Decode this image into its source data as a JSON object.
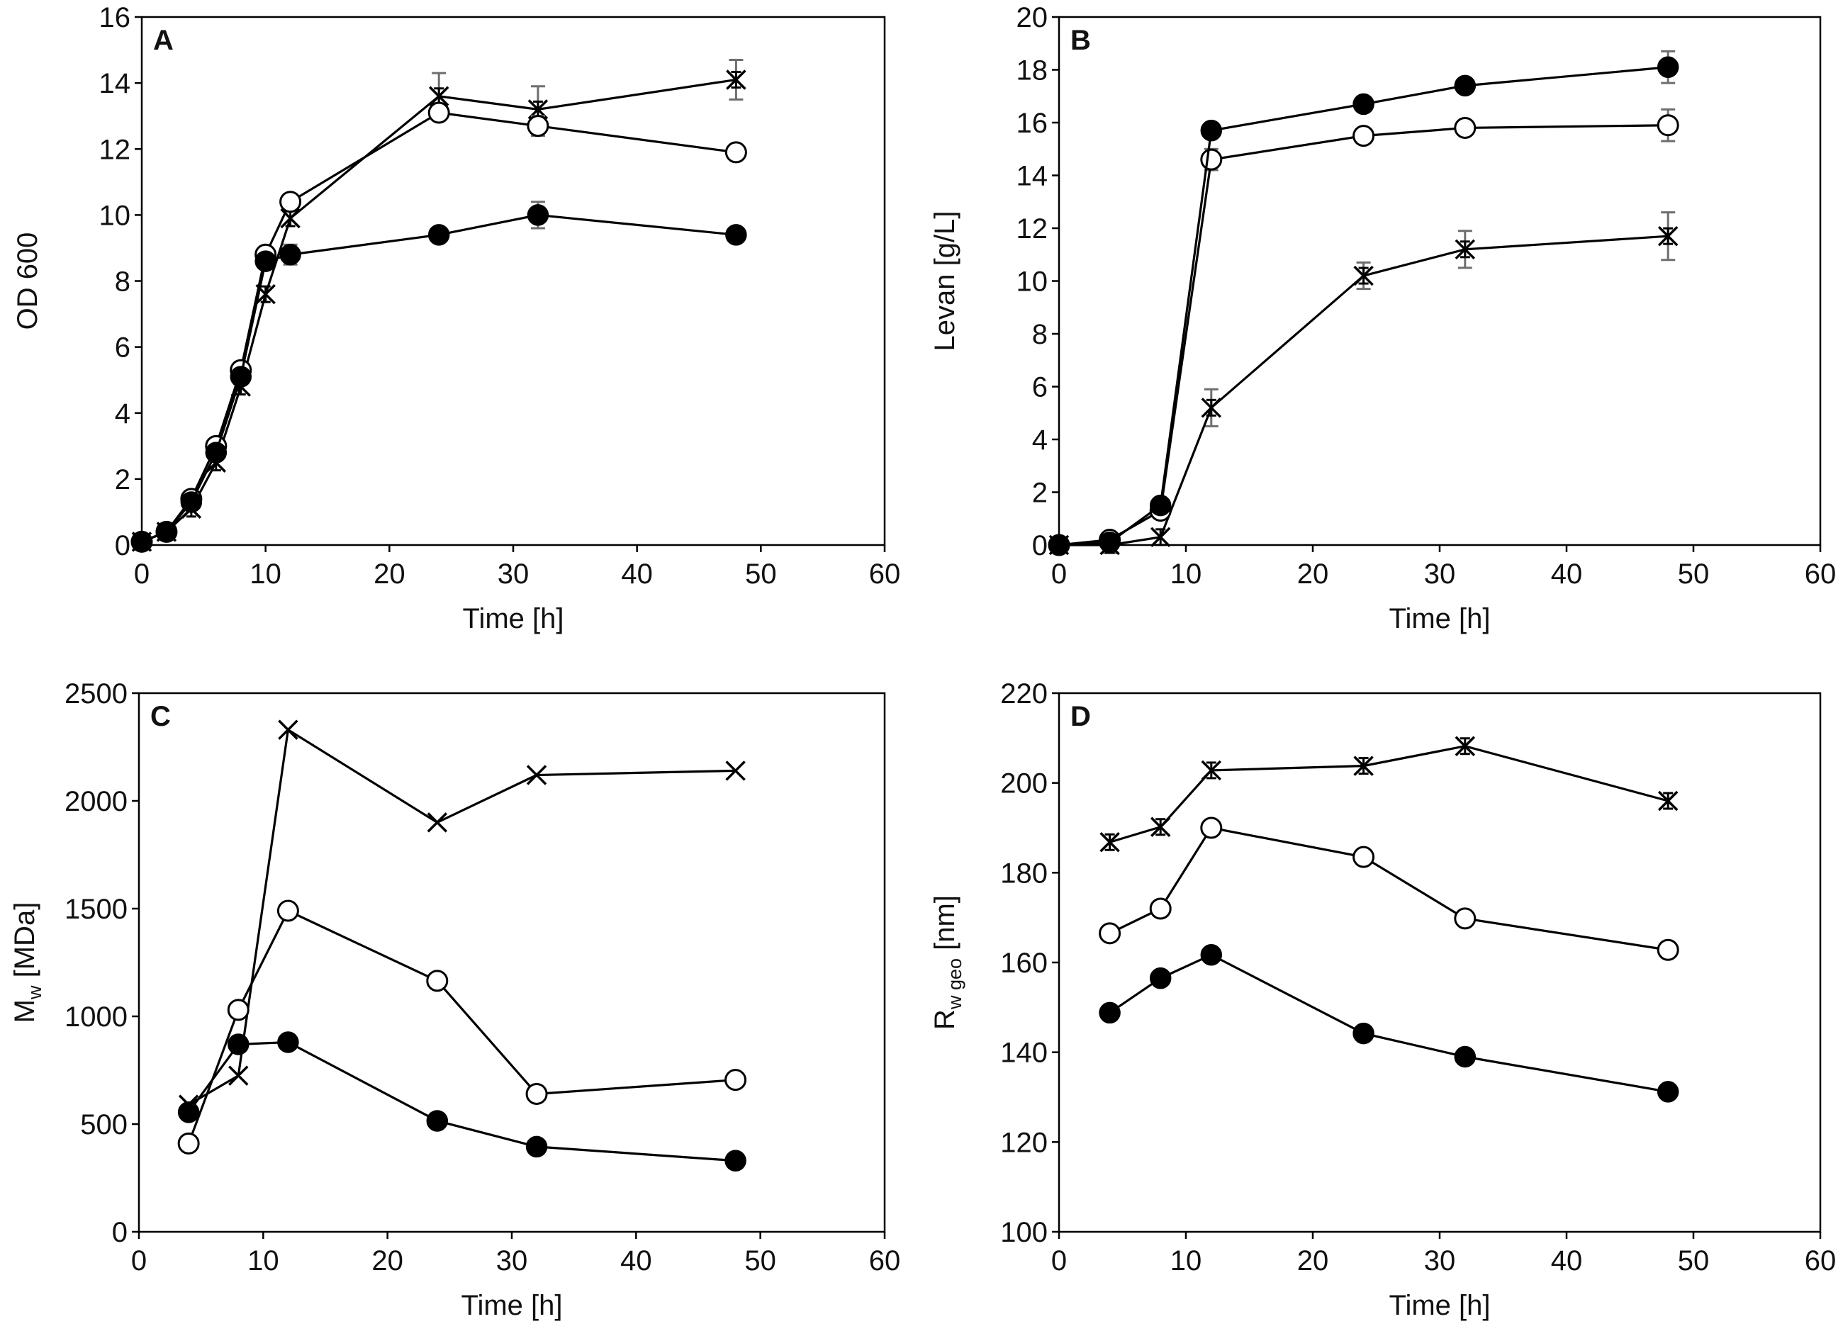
{
  "figure": {
    "description_panels": [
      "A",
      "B",
      "C",
      "D"
    ]
  },
  "chart_data": [
    {
      "type": "line",
      "panel": "A",
      "title": "",
      "xlabel": "Time [h]",
      "ylabel": "OD 600",
      "ylabel_sub": "",
      "xlim": [
        0,
        60
      ],
      "ylim": [
        0,
        16
      ],
      "xticks": [
        "0",
        "10",
        "20",
        "30",
        "40",
        "50",
        "60"
      ],
      "yticks": [
        "0",
        "2",
        "4",
        "6",
        "8",
        "10",
        "12",
        "14",
        "16"
      ],
      "series": [
        {
          "name": "filled",
          "marker": "filled-circle",
          "x": [
            0,
            2,
            4,
            6,
            8,
            10,
            12,
            24,
            32,
            48
          ],
          "y": [
            0.1,
            0.4,
            1.3,
            2.8,
            5.1,
            8.6,
            8.8,
            9.4,
            10.0,
            9.4
          ],
          "err": [
            0,
            0,
            0,
            0,
            0,
            0,
            0.3,
            0,
            0.4,
            0
          ]
        },
        {
          "name": "open",
          "marker": "open-circle",
          "x": [
            0,
            2,
            4,
            6,
            8,
            10,
            12,
            24,
            32,
            48
          ],
          "y": [
            0.1,
            0.4,
            1.4,
            3.0,
            5.3,
            8.8,
            10.4,
            13.1,
            12.7,
            11.9
          ],
          "err": [
            0,
            0,
            0,
            0,
            0,
            0,
            0,
            0,
            0.3,
            0
          ]
        },
        {
          "name": "cross",
          "marker": "x-error",
          "x": [
            0,
            2,
            4,
            6,
            8,
            10,
            12,
            24,
            32,
            48
          ],
          "y": [
            0.1,
            0.4,
            1.1,
            2.5,
            4.8,
            7.6,
            9.9,
            13.6,
            13.2,
            14.1
          ],
          "err": [
            0,
            0,
            0,
            0,
            0,
            0,
            0,
            0.7,
            0.7,
            0.6
          ]
        }
      ]
    },
    {
      "type": "line",
      "panel": "B",
      "title": "",
      "xlabel": "Time [h]",
      "ylabel": "Levan [g/L]",
      "ylabel_sub": "",
      "xlim": [
        0,
        60
      ],
      "ylim": [
        0,
        20
      ],
      "xticks": [
        "0",
        "10",
        "20",
        "30",
        "40",
        "50",
        "60"
      ],
      "yticks": [
        "0",
        "2",
        "4",
        "6",
        "8",
        "10",
        "12",
        "14",
        "16",
        "18",
        "20"
      ],
      "series": [
        {
          "name": "filled",
          "marker": "filled-circle",
          "x": [
            0,
            4,
            8,
            12,
            24,
            32,
            48
          ],
          "y": [
            0.0,
            0.1,
            1.5,
            15.7,
            16.7,
            17.4,
            18.1
          ],
          "err": [
            0,
            0,
            0,
            0,
            0,
            0,
            0.6
          ]
        },
        {
          "name": "open",
          "marker": "open-circle",
          "x": [
            0,
            4,
            8,
            12,
            24,
            32,
            48
          ],
          "y": [
            0.0,
            0.2,
            1.3,
            14.6,
            15.5,
            15.8,
            15.9
          ],
          "err": [
            0,
            0,
            0,
            0.4,
            0,
            0,
            0.6
          ]
        },
        {
          "name": "cross",
          "marker": "x-error",
          "x": [
            0,
            4,
            8,
            12,
            24,
            32,
            48
          ],
          "y": [
            0.0,
            0.0,
            0.3,
            5.2,
            10.2,
            11.2,
            11.7
          ],
          "err": [
            0,
            0.3,
            0,
            0.7,
            0.5,
            0.7,
            0.9
          ]
        }
      ]
    },
    {
      "type": "line",
      "panel": "C",
      "title": "",
      "xlabel": "Time [h]",
      "ylabel": "M",
      "ylabel_sub": "w",
      "ylabel_after": " [MDa]",
      "xlim": [
        0,
        60
      ],
      "ylim": [
        0,
        2500
      ],
      "xticks": [
        "0",
        "10",
        "20",
        "30",
        "40",
        "50",
        "60"
      ],
      "yticks": [
        "0",
        "500",
        "1000",
        "1500",
        "2000",
        "2500"
      ],
      "series": [
        {
          "name": "filled",
          "marker": "filled-circle",
          "x": [
            4,
            8,
            12,
            24,
            32,
            48
          ],
          "y": [
            555,
            870,
            880,
            515,
            395,
            330
          ],
          "err": [
            0,
            0,
            0,
            0,
            0,
            0
          ]
        },
        {
          "name": "open",
          "marker": "open-circle",
          "x": [
            4,
            8,
            12,
            24,
            32,
            48
          ],
          "y": [
            410,
            1030,
            1490,
            1165,
            640,
            705
          ],
          "err": [
            0,
            0,
            0,
            0,
            0,
            0
          ]
        },
        {
          "name": "cross",
          "marker": "x",
          "x": [
            4,
            8,
            12,
            24,
            32,
            48
          ],
          "y": [
            590,
            725,
            2330,
            1900,
            2120,
            2140
          ],
          "err": [
            0,
            0,
            0,
            0,
            0,
            0
          ]
        }
      ]
    },
    {
      "type": "line",
      "panel": "D",
      "title": "",
      "xlabel": "Time [h]",
      "ylabel": "R",
      "ylabel_sub": "w geo",
      "ylabel_after": " [nm]",
      "xlim": [
        0,
        60
      ],
      "ylim": [
        100,
        220
      ],
      "xticks": [
        "0",
        "10",
        "20",
        "30",
        "40",
        "50",
        "60"
      ],
      "yticks": [
        "100",
        "120",
        "140",
        "160",
        "180",
        "200",
        "220"
      ],
      "series": [
        {
          "name": "filled",
          "marker": "filled-circle",
          "x": [
            4,
            8,
            12,
            24,
            32,
            48
          ],
          "y": [
            148.8,
            156.5,
            161.7,
            144.2,
            139.0,
            131.2
          ],
          "err": [
            0,
            0,
            0,
            0,
            0,
            0
          ]
        },
        {
          "name": "open",
          "marker": "open-circle",
          "x": [
            4,
            8,
            12,
            24,
            32,
            48
          ],
          "y": [
            166.5,
            172.0,
            190.0,
            183.5,
            169.8,
            162.8
          ],
          "err": [
            0,
            0,
            0,
            0,
            0,
            0
          ]
        },
        {
          "name": "cross",
          "marker": "x-error",
          "x": [
            4,
            8,
            12,
            24,
            32,
            48
          ],
          "y": [
            186.8,
            190.2,
            202.8,
            203.8,
            208.2,
            196.0
          ],
          "err": [
            0,
            0,
            0,
            0,
            0,
            0
          ]
        }
      ]
    }
  ]
}
